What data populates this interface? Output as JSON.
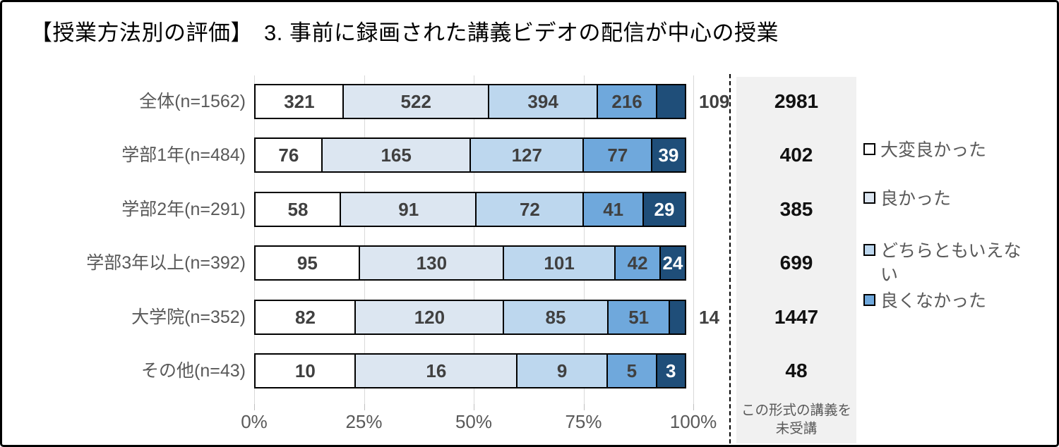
{
  "title": "【授業方法別の評価】　3. 事前に録画された講義ビデオの配信が中心の授業",
  "chart_data": {
    "type": "bar",
    "stacked": true,
    "orientation": "horizontal",
    "title": "【授業方法別の評価】　3. 事前に録画された講義ビデオの配信が中心の授業",
    "categories": [
      "全体(n=1562)",
      "学部1年(n=484)",
      "学部2年(n=291)",
      "学部3年以上(n=392)",
      "大学院(n=352)",
      "その他(n=43)"
    ],
    "totals": [
      1562,
      484,
      291,
      392,
      352,
      43
    ],
    "series": [
      {
        "name": "大変良かった",
        "color": "#ffffff",
        "values": [
          321,
          76,
          58,
          95,
          82,
          10
        ]
      },
      {
        "name": "良かった",
        "color": "#dce6f1",
        "values": [
          522,
          165,
          91,
          130,
          120,
          16
        ]
      },
      {
        "name": "どちらともいえない",
        "color": "#bdd7ee",
        "values": [
          394,
          127,
          72,
          101,
          85,
          9
        ]
      },
      {
        "name": "良くなかった",
        "color": "#6fa8dc",
        "values": [
          216,
          77,
          41,
          42,
          51,
          5
        ]
      },
      {
        "name": "",
        "color": "#1f4e79",
        "values": [
          109,
          39,
          29,
          24,
          14,
          3
        ]
      }
    ],
    "x_axis": {
      "ticks": [
        "0%",
        "25%",
        "50%",
        "75%",
        "100%"
      ],
      "range_percent": [
        0,
        100
      ],
      "grid": true
    },
    "not_attended_column": {
      "header": "この形式の講義を未受講",
      "values": [
        2981,
        402,
        385,
        699,
        1447,
        48
      ]
    },
    "legend_position": "right"
  },
  "legend": {
    "items": [
      {
        "label": "大変良かった",
        "color": "#ffffff"
      },
      {
        "label": "良かった",
        "color": "#dce6f1"
      },
      {
        "label": "どちらともいえない",
        "color": "#bdd7ee"
      },
      {
        "label": "良くなかった",
        "color": "#6fa8dc"
      }
    ]
  },
  "colors": {
    "grid": "#d9d9d9",
    "bar_border": "#000000",
    "label_gray": "#595959",
    "value_dark": "#404040",
    "value_on_dark": "#ffffff",
    "panel_bg": "#f1f1f1",
    "dark_segment": "#1f4e79"
  }
}
